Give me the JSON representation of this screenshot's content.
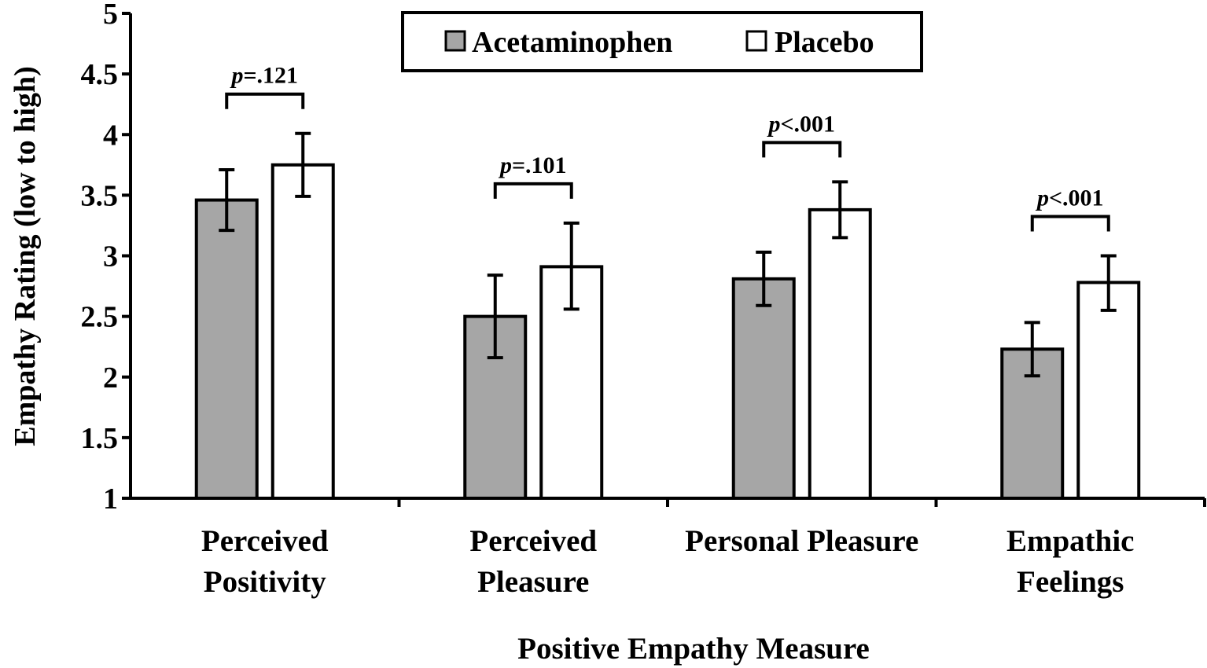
{
  "chart_data": {
    "type": "bar",
    "title": "",
    "xlabel": "Positive Empathy Measure",
    "ylabel": "Empathy Rating (low to high)",
    "ylim": [
      1,
      5
    ],
    "yticks": [
      "1",
      "1.5",
      "2",
      "2.5",
      "3",
      "3.5",
      "4",
      "4.5",
      "5"
    ],
    "categories": [
      [
        "Perceived",
        "Positivity"
      ],
      [
        "Perceived",
        "Pleasure"
      ],
      [
        "Personal Pleasure"
      ],
      [
        "Empathic",
        "Feelings"
      ]
    ],
    "series": [
      {
        "name": "Acetaminophen",
        "color": "#a6a6a6",
        "values": [
          3.46,
          2.5,
          2.81,
          2.23
        ],
        "error_low": [
          3.21,
          2.16,
          2.59,
          2.01
        ],
        "error_high": [
          3.71,
          2.84,
          3.03,
          2.45
        ]
      },
      {
        "name": "Placebo",
        "color": "#ffffff",
        "values": [
          3.75,
          2.91,
          3.38,
          2.78
        ],
        "error_low": [
          3.49,
          2.56,
          3.15,
          2.55
        ],
        "error_high": [
          4.01,
          3.27,
          3.61,
          3.0
        ]
      }
    ],
    "p_values": [
      {
        "italic": "p",
        "rest": "=.121"
      },
      {
        "italic": "p",
        "rest": "=.101"
      },
      {
        "italic": "p",
        "rest": "<.001"
      },
      {
        "italic": "p",
        "rest": "<.001"
      }
    ],
    "legend_position": "top-center",
    "grid": false
  }
}
